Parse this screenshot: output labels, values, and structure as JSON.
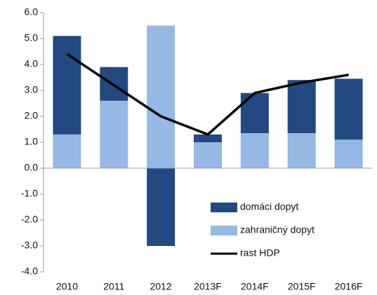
{
  "chart_data": {
    "type": "bar",
    "categories": [
      "2010",
      "2011",
      "2012",
      "2013F",
      "2014F",
      "2015F",
      "2016F"
    ],
    "stacked": true,
    "series": [
      {
        "name": "domáci dopyt",
        "type": "bar",
        "color": "#234a80",
        "values": [
          3.8,
          1.3,
          -3.0,
          0.3,
          1.55,
          2.05,
          2.35
        ]
      },
      {
        "name": "zahraničný dopyt",
        "type": "bar",
        "color": "#95b8e5",
        "values": [
          1.3,
          2.6,
          5.5,
          1.0,
          1.35,
          1.35,
          1.1
        ]
      },
      {
        "name": "rast HDP",
        "type": "line",
        "color": "#000000",
        "values": [
          4.4,
          3.2,
          2.0,
          1.3,
          2.9,
          3.3,
          3.6
        ]
      }
    ],
    "ylim": [
      -4,
      6
    ],
    "yticks": [
      {
        "value": -4,
        "label": "-4.0"
      },
      {
        "value": -3,
        "label": "-3.0"
      },
      {
        "value": -2,
        "label": "-2.0"
      },
      {
        "value": -1,
        "label": "-1.0"
      },
      {
        "value": 0,
        "label": "0.0"
      },
      {
        "value": 1,
        "label": "1.0"
      },
      {
        "value": 2,
        "label": "2.0"
      },
      {
        "value": 3,
        "label": "3.0"
      },
      {
        "value": 4,
        "label": "4.0"
      },
      {
        "value": 5,
        "label": "5.0"
      },
      {
        "value": 6,
        "label": "6.0"
      }
    ],
    "grid": false,
    "legend": "lower-right"
  }
}
